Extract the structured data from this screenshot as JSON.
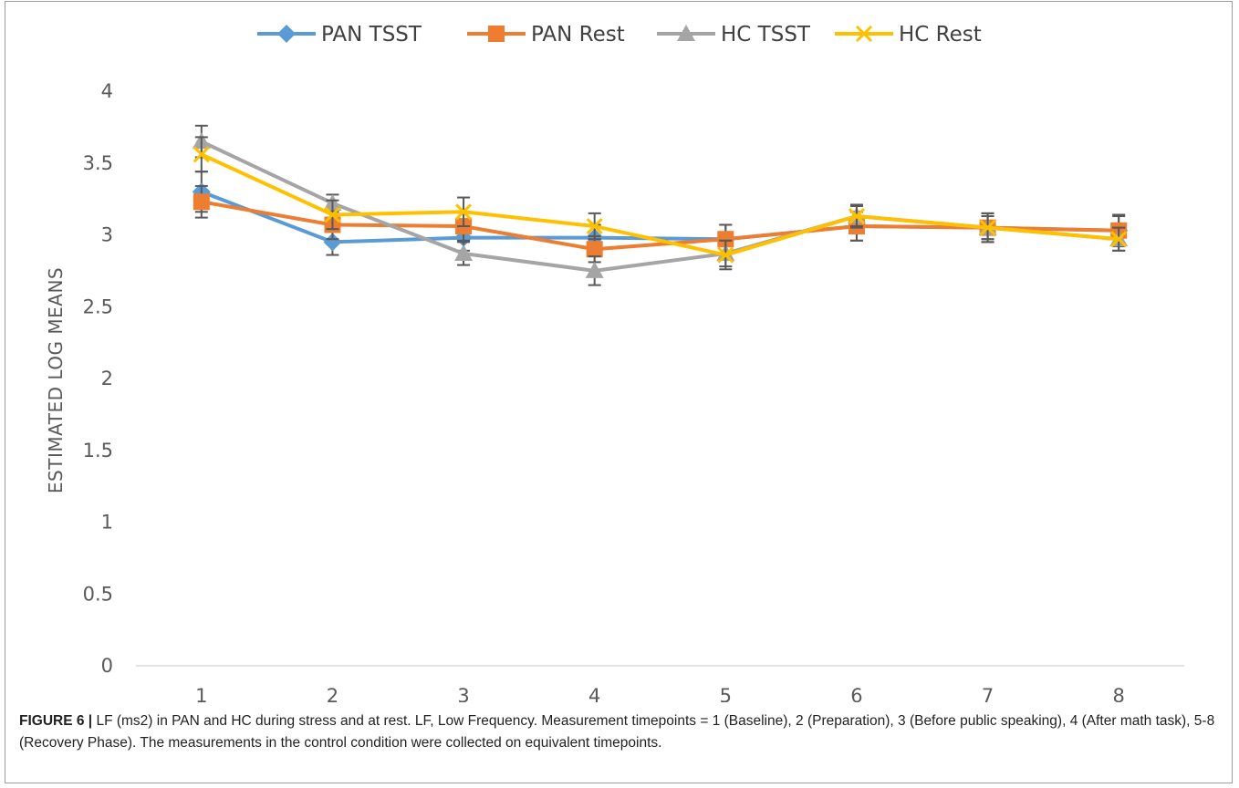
{
  "chart_data": {
    "type": "line",
    "title": "",
    "xlabel": "",
    "ylabel": "ESTIMATED LOG MEANS",
    "ylim": [
      0,
      4
    ],
    "yticks": [
      "0",
      "0.5",
      "1",
      "1.5",
      "2",
      "2.5",
      "3",
      "3.5",
      "4"
    ],
    "x": [
      "1",
      "2",
      "3",
      "4",
      "5",
      "6",
      "7",
      "8"
    ],
    "grid": false,
    "legend_position": "top",
    "series": [
      {
        "name": "PAN TSST",
        "color": "#5b9bd5",
        "marker": "diamond",
        "values": [
          3.3,
          2.95,
          2.98,
          2.98,
          2.97,
          3.06,
          3.05,
          3.03
        ],
        "errors": [
          0.14,
          0.09,
          0.09,
          0.09,
          0.1,
          0.1,
          0.1,
          0.1
        ]
      },
      {
        "name": "PAN Rest",
        "color": "#ed7d31",
        "marker": "square",
        "values": [
          3.23,
          3.07,
          3.06,
          2.9,
          2.97,
          3.06,
          3.05,
          3.03
        ],
        "errors": [
          0.11,
          0.1,
          0.1,
          0.09,
          0.1,
          0.1,
          0.1,
          0.11
        ]
      },
      {
        "name": "HC TSST",
        "color": "#a5a5a5",
        "marker": "triangle",
        "values": [
          3.65,
          3.22,
          2.87,
          2.75,
          2.87,
          3.13,
          3.05,
          2.97
        ],
        "errors": [
          0.11,
          0.06,
          0.08,
          0.1,
          0.09,
          0.07,
          0.08,
          0.08
        ]
      },
      {
        "name": "HC Rest",
        "color": "#ffc000",
        "marker": "x",
        "values": [
          3.56,
          3.14,
          3.16,
          3.06,
          2.86,
          3.13,
          3.05,
          2.97
        ],
        "errors": [
          0.12,
          0.1,
          0.1,
          0.09,
          0.1,
          0.08,
          0.08,
          0.08
        ]
      }
    ]
  },
  "caption": {
    "label": "FIGURE 6 |",
    "text": " LF (ms2) in PAN and HC during stress and at rest. LF, Low Frequency. Measurement timepoints = 1 (Baseline), 2 (Preparation), 3 (Before public speaking), 4 (After math task), 5-8 (Recovery Phase). The measurements in the control condition were collected on equivalent timepoints."
  }
}
